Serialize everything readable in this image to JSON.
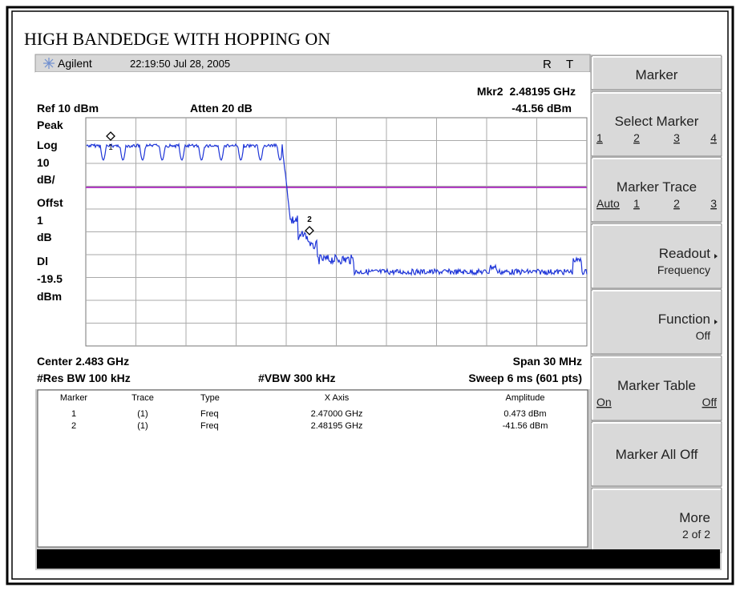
{
  "title": "HIGH BANDEDGE WITH HOPPING ON",
  "header": {
    "brand": "Agilent",
    "datetime": "22:19:50 Jul 28, 2005",
    "status": [
      "R",
      "T"
    ]
  },
  "display": {
    "marker_readout": {
      "label": "Mkr2",
      "frequency": "2.48195 GHz",
      "amplitude": "-41.56 dBm"
    },
    "ref": "Ref 10 dBm",
    "atten": "Atten 20 dB",
    "left_labels": [
      "Peak",
      "Log",
      "10",
      "dB/",
      "Offst",
      "1",
      "dB",
      "Dl",
      "-19.5",
      "dBm"
    ],
    "marker_labels": [
      "1",
      "2"
    ],
    "center": "Center 2.483 GHz",
    "span": "Span 30 MHz",
    "res_bw": "#Res BW 100 kHz",
    "vbw": "#VBW 300 kHz",
    "sweep": "Sweep 6 ms (601 pts)"
  },
  "marker_table": {
    "columns": [
      "Marker",
      "Trace",
      "Type",
      "X Axis",
      "Amplitude"
    ],
    "rows": [
      [
        "1",
        "(1)",
        "Freq",
        "2.47000 GHz",
        "0.473 dBm"
      ],
      [
        "2",
        "(1)",
        "Freq",
        "2.48195 GHz",
        "-41.56 dBm"
      ]
    ]
  },
  "softkeys": [
    {
      "title": "Marker"
    },
    {
      "label": "Select Marker",
      "options": [
        "1",
        "2",
        "3",
        "4"
      ]
    },
    {
      "label": "Marker Trace",
      "options": [
        "Auto",
        "1",
        "2",
        "3"
      ]
    },
    {
      "label": "Readout",
      "value": "Frequency"
    },
    {
      "label": "Function",
      "value": "Off"
    },
    {
      "label": "Marker Table",
      "options": [
        "On",
        "Off"
      ]
    },
    {
      "label": "Marker All Off"
    },
    {
      "label": "More",
      "value": "2 of 2"
    }
  ]
}
